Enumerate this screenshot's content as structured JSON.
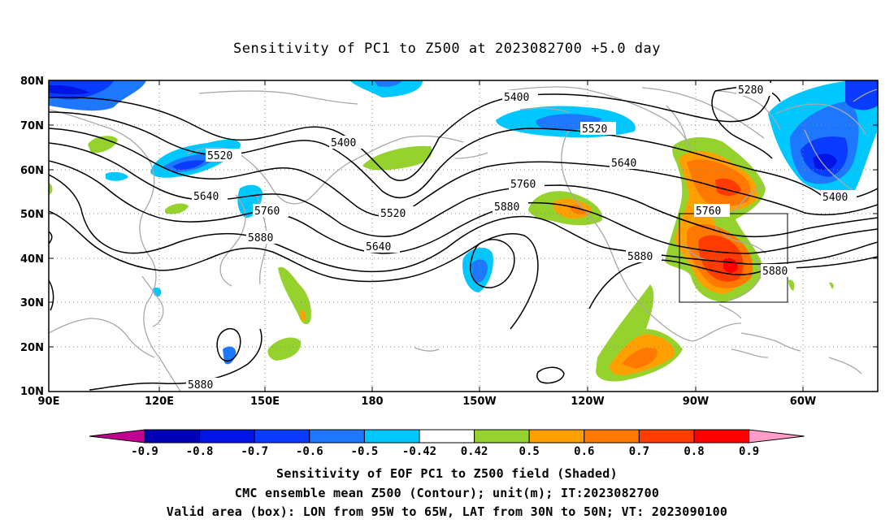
{
  "title": "Sensitivity of PC1 to Z500 at 2023082700 +5.0 day",
  "map": {
    "lat_labels": [
      "80N",
      "70N",
      "60N",
      "50N",
      "40N",
      "30N",
      "20N",
      "10N"
    ],
    "lon_labels": [
      "90E",
      "120E",
      "150E",
      "180",
      "150W",
      "120W",
      "90W",
      "60W"
    ],
    "contour_labels": [
      "5280",
      "5400",
      "5400",
      "5400",
      "5520",
      "5520",
      "5520",
      "5640",
      "5640",
      "5640",
      "5760",
      "5760",
      "5760",
      "5880",
      "5880",
      "5880",
      "5880",
      "5880"
    ],
    "box": {
      "lon_min": "95W",
      "lon_max": "65W",
      "lat_min": "30N",
      "lat_max": "50N"
    }
  },
  "colorbar": {
    "labels": [
      "-0.9",
      "-0.8",
      "-0.7",
      "-0.6",
      "-0.5",
      "-0.42",
      "0.42",
      "0.5",
      "0.6",
      "0.7",
      "0.8",
      "0.9"
    ],
    "colors": [
      "#c00090",
      "#0000b4",
      "#0014e6",
      "#0a3cff",
      "#1e78ff",
      "#00c8ff",
      "#ffffff",
      "#96d22d",
      "#ffa000",
      "#ff7800",
      "#ff3c00",
      "#ff0000",
      "#ff9ec8"
    ]
  },
  "captions": {
    "line1": "Sensitivity of EOF PC1 to Z500 field (Shaded)",
    "line2": "CMC ensemble mean Z500 (Contour); unit(m); IT:2023082700",
    "line3": "Valid area (box): LON from 95W to 65W, LAT from 30N to 50N; VT: 2023090100"
  }
}
